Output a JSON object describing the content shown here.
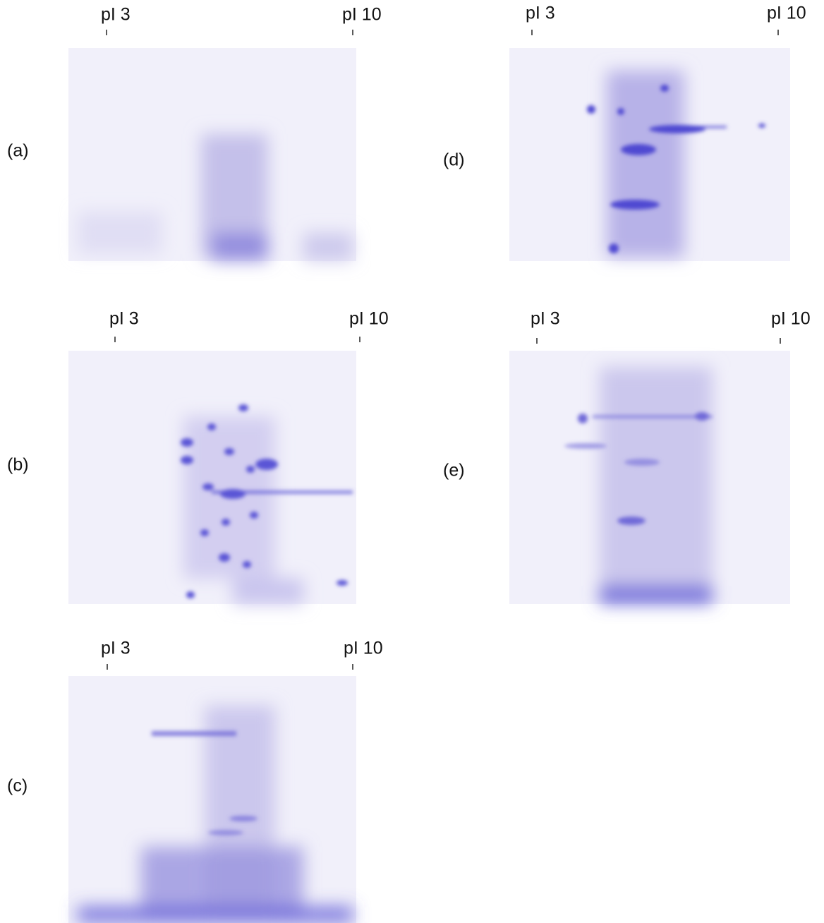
{
  "panels": [
    {
      "label": "(a)",
      "left_marker": "pI 3",
      "right_marker": "pI 10"
    },
    {
      "label": "(b)",
      "left_marker": "pI 3",
      "right_marker": "pI 10"
    },
    {
      "label": "(c)",
      "left_marker": "pI 3",
      "right_marker": "pI 10"
    },
    {
      "label": "(d)",
      "left_marker": "pI 3",
      "right_marker": "pI 10"
    },
    {
      "label": "(e)",
      "left_marker": "pI 3",
      "right_marker": "pI 10"
    }
  ]
}
